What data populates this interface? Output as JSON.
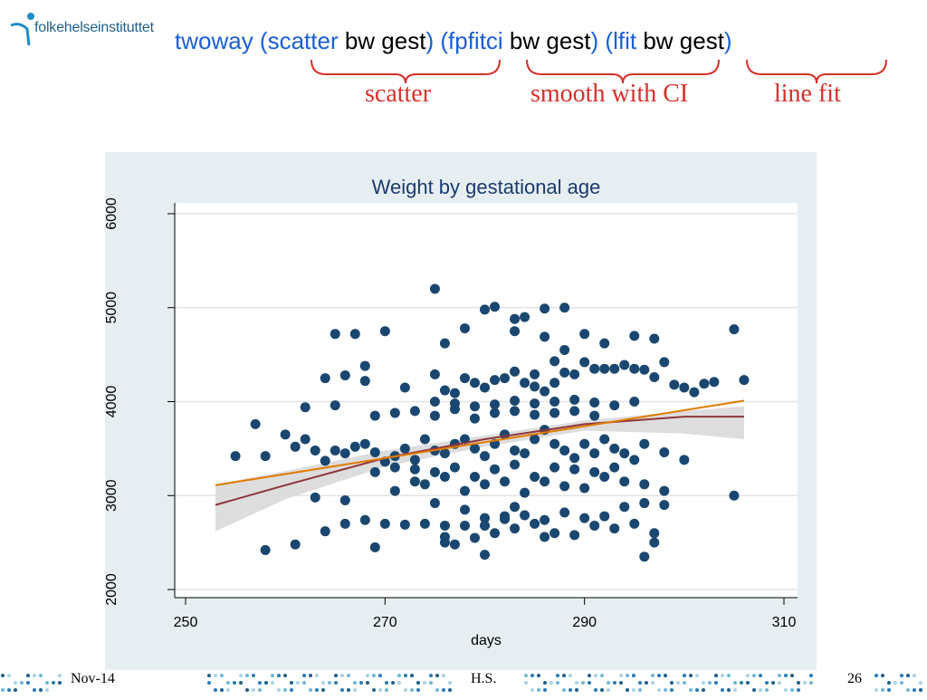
{
  "logo": {
    "text": "folkehelseinstituttet",
    "icon": "fhi-logo-icon"
  },
  "command": {
    "parts": [
      {
        "text": "twoway",
        "style": "kw"
      },
      {
        "text": " (",
        "style": "par"
      },
      {
        "text": "scatter",
        "style": "kw"
      },
      {
        "text": " bw gest",
        "style": "plain"
      },
      {
        "text": ")",
        "style": "par"
      },
      {
        "text": " (",
        "style": "par"
      },
      {
        "text": "fpfitci",
        "style": "kw"
      },
      {
        "text": " bw gest",
        "style": "plain"
      },
      {
        "text": ")",
        "style": "par"
      },
      {
        "text": " (",
        "style": "par"
      },
      {
        "text": "lfit",
        "style": "kw"
      },
      {
        "text": " bw gest",
        "style": "plain"
      },
      {
        "text": ")",
        "style": "par"
      }
    ]
  },
  "annotations": {
    "scatter": "scatter",
    "smooth": "smooth with CI",
    "linefit": "line fit"
  },
  "colors": {
    "keyword": "#1a5fd8",
    "annotation": "#d8302a",
    "panel_bg": "#e6eef2",
    "dot": "#1a476f",
    "fit_line": "#e07b00",
    "smooth_line": "#90353b",
    "ci_band": "#d9d9d9"
  },
  "chart_data": {
    "type": "scatter",
    "title": "Weight by gestational age",
    "xlabel": "days",
    "ylabel": "",
    "xlim": [
      249,
      311
    ],
    "ylim": [
      2000,
      6200
    ],
    "xticks": [
      250,
      270,
      290,
      310
    ],
    "yticks": [
      2000,
      3000,
      4000,
      5000,
      6000
    ],
    "grid": true,
    "legend": "none",
    "series": [
      {
        "kind": "points",
        "x": [
          275,
          280,
          281,
          283,
          284,
          286,
          288,
          278,
          265,
          270,
          283,
          267,
          286,
          290,
          276,
          295,
          292,
          297,
          305,
          268,
          255,
          258,
          257,
          262,
          265,
          264,
          266,
          268,
          272,
          275,
          276,
          277,
          278,
          279,
          280,
          281,
          282,
          283,
          284,
          285,
          285,
          286,
          287,
          287,
          288,
          288,
          289,
          290,
          291,
          292,
          293,
          294,
          295,
          296,
          297,
          298,
          299,
          300,
          301,
          302,
          303,
          306,
          260,
          261,
          262,
          263,
          264,
          265,
          266,
          267,
          268,
          269,
          270,
          271,
          272,
          273,
          274,
          275,
          276,
          277,
          278,
          279,
          280,
          281,
          282,
          283,
          284,
          285,
          286,
          287,
          288,
          289,
          290,
          291,
          292,
          293,
          294,
          295,
          296,
          298,
          300,
          305,
          271,
          273,
          274,
          276,
          278,
          280,
          282,
          284,
          286,
          288,
          290,
          292,
          294,
          296,
          298,
          258,
          261,
          264,
          266,
          268,
          270,
          272,
          274,
          276,
          278,
          280,
          282,
          284,
          286,
          288,
          290,
          292,
          294,
          296,
          298,
          277,
          279,
          281,
          283,
          285,
          287,
          289,
          291,
          293,
          295,
          297,
          269,
          271,
          273,
          275,
          277,
          279,
          281,
          283,
          285,
          287,
          289,
          291,
          293,
          269,
          271,
          273,
          275,
          277,
          279,
          281,
          283,
          285,
          287,
          289,
          291,
          275,
          277,
          279,
          281,
          283,
          285,
          287,
          289,
          291,
          293,
          295,
          276,
          276,
          280,
          282,
          286,
          296,
          297,
          263,
          266,
          269,
          280,
          275,
          278,
          283
        ],
        "y": [
          5200,
          4980,
          5010,
          4880,
          4900,
          4990,
          5000,
          4780,
          4720,
          4750,
          4750,
          4720,
          4690,
          4720,
          4620,
          4700,
          4620,
          4670,
          4770,
          4380,
          3420,
          3420,
          3760,
          3940,
          3960,
          4250,
          4280,
          4220,
          4150,
          4290,
          4120,
          4090,
          4250,
          4200,
          4150,
          4230,
          4250,
          4320,
          4200,
          4160,
          4290,
          4110,
          4200,
          4430,
          4310,
          4550,
          4290,
          4420,
          4350,
          4350,
          4350,
          4390,
          4350,
          4340,
          4260,
          4420,
          4180,
          4150,
          4100,
          4190,
          4210,
          4230,
          3650,
          3520,
          3600,
          3480,
          3370,
          3480,
          3450,
          3520,
          3550,
          3460,
          3360,
          3420,
          3500,
          3380,
          3600,
          3480,
          3450,
          3550,
          3600,
          3500,
          3420,
          3550,
          3650,
          3480,
          3450,
          3600,
          3700,
          3550,
          3480,
          3400,
          3550,
          3450,
          3600,
          3500,
          3450,
          3380,
          3550,
          3460,
          3380,
          3000,
          3050,
          3150,
          3120,
          3200,
          3050,
          3120,
          3150,
          3030,
          3150,
          3100,
          3080,
          3200,
          3150,
          3120,
          3050,
          2420,
          2480,
          2620,
          2700,
          2740,
          2700,
          2690,
          2700,
          2680,
          2680,
          2760,
          2780,
          2790,
          2740,
          2820,
          2760,
          2780,
          2880,
          2920,
          2900,
          2480,
          2550,
          2600,
          2650,
          2700,
          2600,
          2580,
          2680,
          2650,
          2700,
          2600,
          3250,
          3300,
          3280,
          3250,
          3300,
          3200,
          3280,
          3330,
          3200,
          3300,
          3280,
          3250,
          3300,
          3850,
          3880,
          3900,
          3850,
          3920,
          3820,
          3880,
          3900,
          3860,
          3880,
          3900,
          3850,
          4000,
          3980,
          3950,
          3970,
          4010,
          3980,
          4000,
          4020,
          3990,
          3960,
          4000,
          2500,
          2560,
          2680,
          2750,
          2560,
          2350,
          2500,
          2980,
          2950,
          2450,
          2370,
          2920,
          2850,
          2880
        ],
        "color": "dot"
      },
      {
        "kind": "ci_band",
        "x": [
          253,
          260,
          270,
          280,
          290,
          300,
          306
        ],
        "upper": [
          3120,
          3260,
          3480,
          3640,
          3800,
          3900,
          3950
        ],
        "lower": [
          2620,
          2960,
          3310,
          3520,
          3690,
          3660,
          3600
        ]
      },
      {
        "kind": "smooth_line",
        "x": [
          253,
          260,
          270,
          280,
          290,
          300,
          306
        ],
        "y": [
          2900,
          3110,
          3400,
          3600,
          3760,
          3840,
          3840
        ],
        "color": "smooth_line"
      },
      {
        "kind": "fit_line",
        "x": [
          253,
          306
        ],
        "y": [
          3110,
          4010
        ],
        "color": "fit_line"
      }
    ]
  },
  "footer": {
    "date": "Nov-14",
    "author": "H.S.",
    "page": "26"
  }
}
